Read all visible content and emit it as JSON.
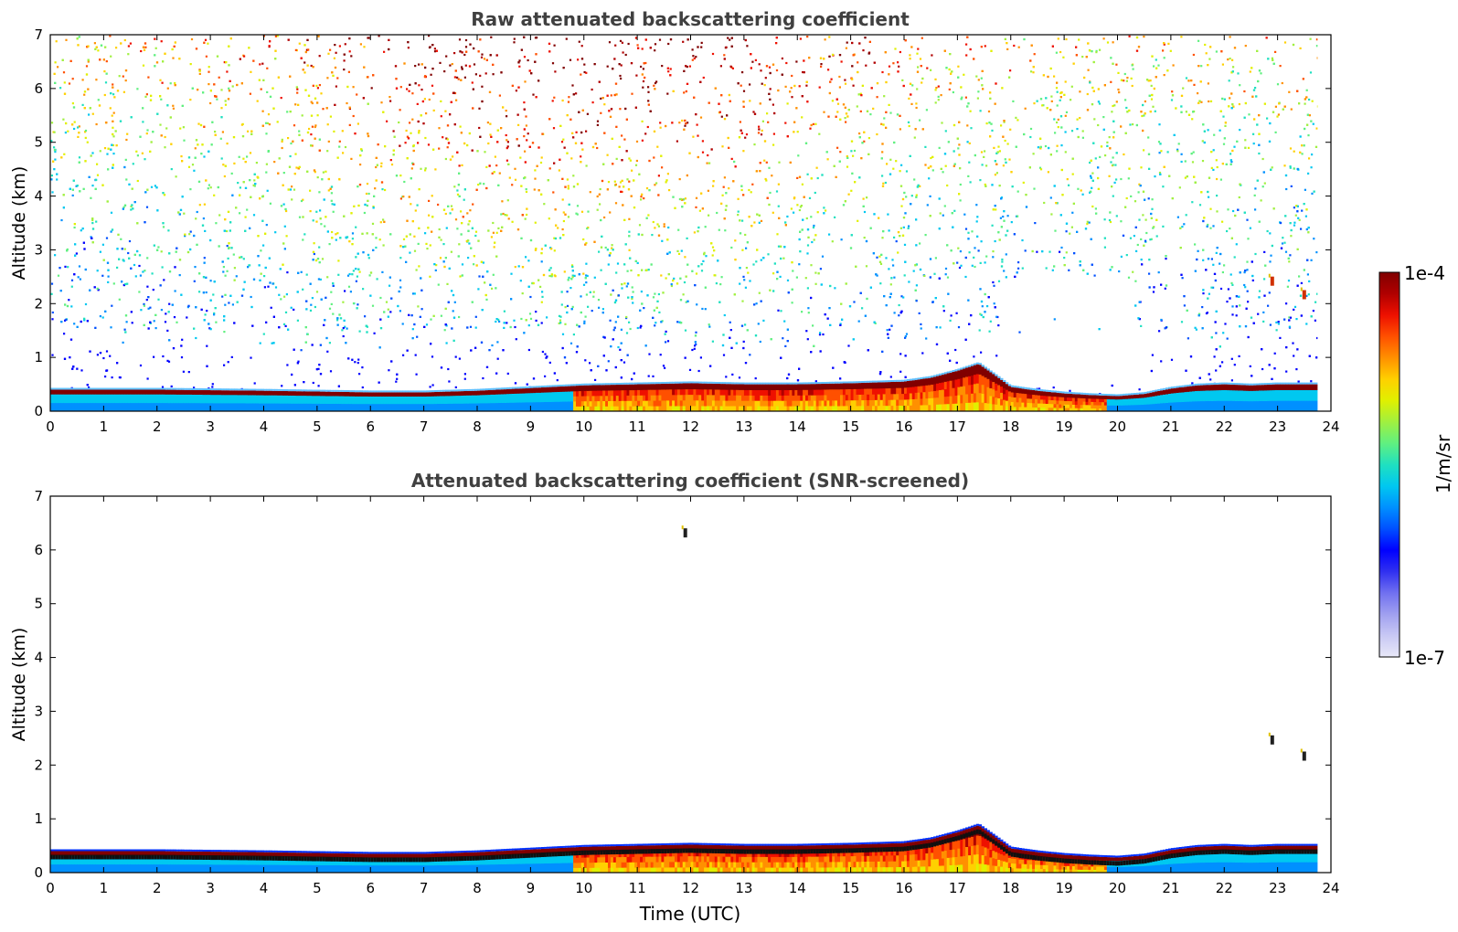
{
  "chart_data": [
    {
      "type": "heatmap",
      "title": "Raw attenuated backscattering coefficient",
      "xlabel": "",
      "ylabel": "Altitude (km)",
      "xlim": [
        0,
        24
      ],
      "ylim": [
        0,
        7
      ],
      "x_ticks": [
        "0",
        "1",
        "2",
        "3",
        "4",
        "5",
        "6",
        "7",
        "8",
        "9",
        "10",
        "11",
        "12",
        "13",
        "14",
        "15",
        "16",
        "17",
        "18",
        "19",
        "20",
        "21",
        "22",
        "23",
        "24"
      ],
      "y_ticks": [
        "0",
        "1",
        "2",
        "3",
        "4",
        "5",
        "6",
        "7"
      ],
      "data_end_hour": 23.75,
      "boundary_layer_top_km": {
        "time_utc": [
          0,
          2,
          4,
          6,
          7,
          8,
          9,
          10,
          11,
          12,
          13,
          14,
          15,
          16,
          16.5,
          17,
          17.4,
          17.8,
          18,
          18.5,
          19,
          19.5,
          20,
          20.5,
          21,
          21.5,
          22,
          22.5,
          23,
          23.75
        ],
        "altitude": [
          0.4,
          0.4,
          0.38,
          0.35,
          0.35,
          0.38,
          0.43,
          0.48,
          0.5,
          0.52,
          0.5,
          0.5,
          0.52,
          0.55,
          0.62,
          0.75,
          0.88,
          0.6,
          0.45,
          0.38,
          0.33,
          0.3,
          0.28,
          0.32,
          0.42,
          0.48,
          0.5,
          0.48,
          0.5,
          0.5
        ]
      },
      "noise_free_region": {
        "time_utc": [
          17.8,
          20.3
        ],
        "altitude": [
          0.5,
          2.5
        ]
      },
      "features": [
        {
          "time_utc": 22.9,
          "altitude_km": 2.4
        },
        {
          "time_utc": 23.5,
          "altitude_km": 2.15
        }
      ]
    },
    {
      "type": "heatmap",
      "title": "Attenuated backscattering coefficient (SNR-screened)",
      "xlabel": "Time (UTC)",
      "ylabel": "Altitude (km)",
      "xlim": [
        0,
        24
      ],
      "ylim": [
        0,
        7
      ],
      "x_ticks": [
        "0",
        "1",
        "2",
        "3",
        "4",
        "5",
        "6",
        "7",
        "8",
        "9",
        "10",
        "11",
        "12",
        "13",
        "14",
        "15",
        "16",
        "17",
        "18",
        "19",
        "20",
        "21",
        "22",
        "23",
        "24"
      ],
      "y_ticks": [
        "0",
        "1",
        "2",
        "3",
        "4",
        "5",
        "6",
        "7"
      ],
      "data_end_hour": 23.75,
      "features": [
        {
          "time_utc": 22.9,
          "altitude_km": 2.45
        },
        {
          "time_utc": 23.5,
          "altitude_km": 2.15
        },
        {
          "time_utc": 11.9,
          "altitude_km": 6.3
        }
      ]
    }
  ],
  "colorbar": {
    "label": "1/m/sr",
    "max_label": "1e-4",
    "min_label": "1e-7",
    "scale": "log",
    "range": [
      1e-07,
      0.0001
    ],
    "colors": [
      "#e8e8f8",
      "#c8c8f4",
      "#a0a0f0",
      "#7070f0",
      "#3030f0",
      "#0000ff",
      "#0050ff",
      "#0090ff",
      "#00c8f0",
      "#20e0c0",
      "#60f080",
      "#a0f040",
      "#e0f000",
      "#ffd000",
      "#ff9000",
      "#ff5000",
      "#ee1000",
      "#b00000",
      "#800000"
    ]
  }
}
